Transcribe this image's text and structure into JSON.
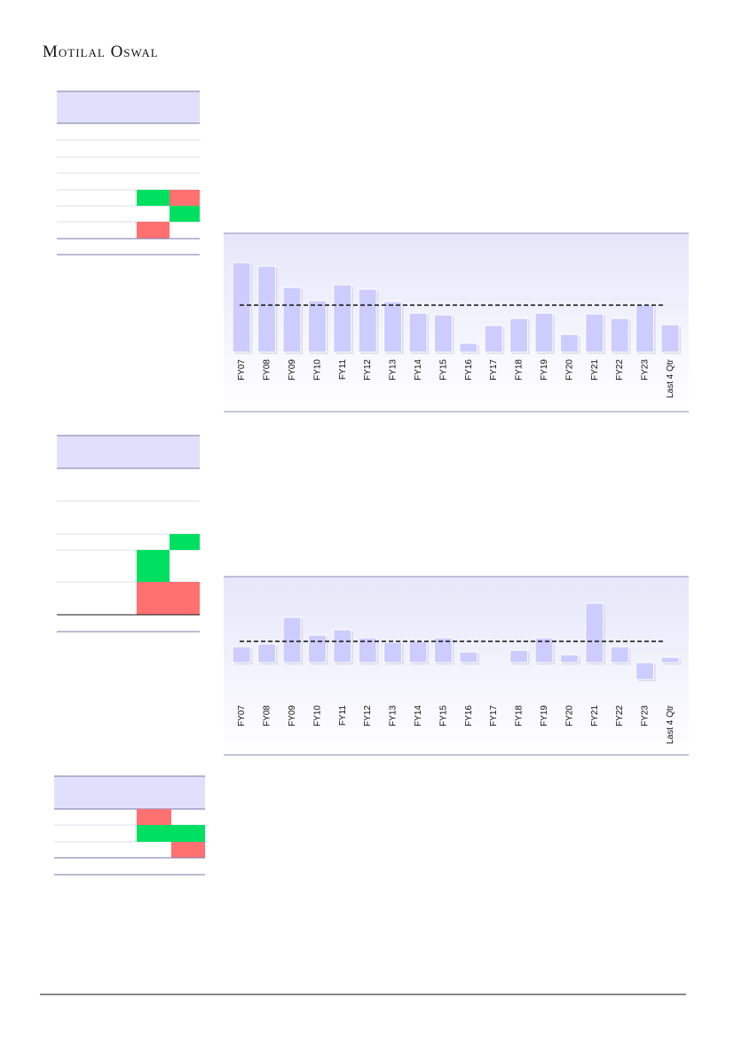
{
  "header": {
    "brand": "Motilal Oswal"
  },
  "chart_data": [
    {
      "type": "bar",
      "color": "#ccccff",
      "categories": [
        "FY07",
        "FY08",
        "FY09",
        "FY10",
        "FY11",
        "FY12",
        "FY13",
        "FY14",
        "FY15",
        "FY16",
        "FY17",
        "FY18",
        "FY19",
        "FY20",
        "FY21",
        "FY22",
        "FY23",
        "Last 4 Qtr"
      ],
      "values": [
        101,
        97,
        73,
        58,
        76,
        71,
        57,
        44,
        42,
        10,
        30,
        38,
        44,
        20,
        43,
        38,
        53,
        31
      ],
      "reference_line": 53
    },
    {
      "type": "bar",
      "color": "#ccccff",
      "categories": [
        "FY07",
        "FY08",
        "FY09",
        "FY10",
        "FY11",
        "FY12",
        "FY13",
        "FY14",
        "FY15",
        "FY16",
        "FY17",
        "FY18",
        "FY19",
        "FY20",
        "FY21",
        "FY22",
        "FY23",
        "Last 4 Qtr"
      ],
      "values": [
        18,
        21,
        51,
        31,
        37,
        28,
        23,
        24,
        28,
        12,
        0,
        14,
        28,
        9,
        67,
        18,
        -19,
        6
      ],
      "reference_line": 24
    }
  ]
}
